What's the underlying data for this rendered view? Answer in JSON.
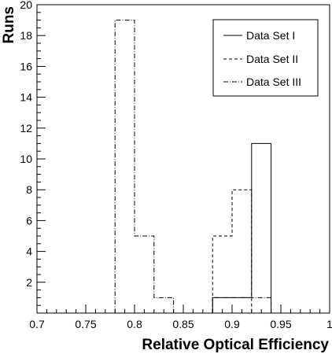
{
  "chart_data": {
    "type": "histogram",
    "xlabel": "Relative Optical Efficiency",
    "ylabel": "Runs",
    "xlim": [
      0.7,
      1.0
    ],
    "ylim": [
      0,
      20
    ],
    "x_ticks": [
      0.7,
      0.75,
      0.8,
      0.85,
      0.9,
      0.95,
      1
    ],
    "x_tick_labels": [
      "0.7",
      "0.75",
      "0.8",
      "0.85",
      "0.9",
      "0.95",
      "1"
    ],
    "y_ticks": [
      2,
      4,
      6,
      8,
      10,
      12,
      14,
      16,
      18,
      20
    ],
    "y_tick_labels": [
      "2",
      "4",
      "6",
      "8",
      "10",
      "12",
      "14",
      "16",
      "18",
      "20"
    ],
    "bin_edges": [
      0.7,
      0.72,
      0.74,
      0.76,
      0.78,
      0.8,
      0.82,
      0.84,
      0.86,
      0.88,
      0.9,
      0.92,
      0.94,
      0.96,
      0.98,
      1.0
    ],
    "series": [
      {
        "name": "Data Set I",
        "line_style": "solid",
        "color": "#000000",
        "counts": [
          0,
          0,
          0,
          0,
          0,
          0,
          0,
          0,
          0,
          1,
          1,
          11,
          0,
          0,
          0
        ]
      },
      {
        "name": "Data Set II",
        "line_style": "dashed",
        "color": "#000000",
        "counts": [
          0,
          0,
          0,
          0,
          0,
          0,
          0,
          0,
          0,
          5,
          8,
          0,
          0,
          0,
          0
        ]
      },
      {
        "name": "Data Set III",
        "line_style": "dashdot",
        "color": "#000000",
        "counts": [
          0,
          0,
          0,
          0,
          19,
          5,
          1,
          0,
          0,
          1,
          1,
          1,
          0,
          0,
          0
        ]
      }
    ],
    "legend_position": "top-right",
    "grid": false
  }
}
